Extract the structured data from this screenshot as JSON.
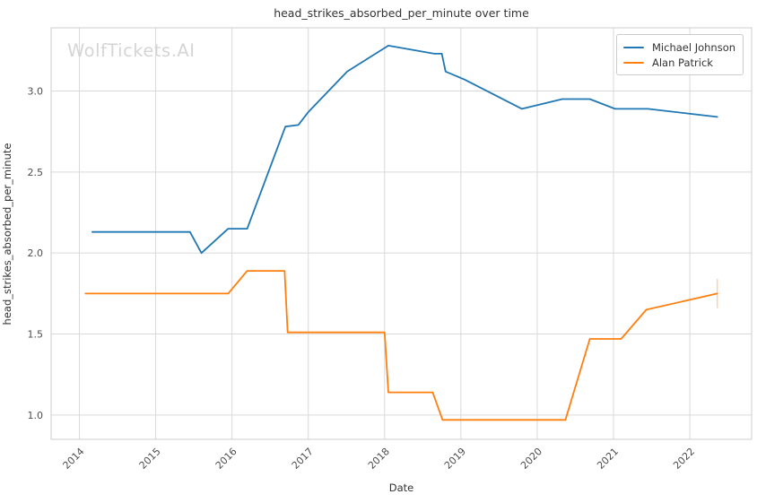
{
  "figure": {
    "title": "head_strikes_absorbed_per_minute over time",
    "xlabel": "Date",
    "ylabel": "head_strikes_absorbed_per_minute",
    "watermark": "WolfTickets.AI",
    "background_color": "#ffffff",
    "grid_color": "#d9d9d9",
    "border_color": "#cccccc",
    "text_color": "#333333",
    "tick_label_color": "#4d4d4d",
    "watermark_color": "#d5d5d5"
  },
  "chart_data": {
    "type": "line",
    "title": "head_strikes_absorbed_per_minute over time",
    "xlabel": "Date",
    "ylabel": "head_strikes_absorbed_per_minute",
    "grid": true,
    "legend_position": "upper right",
    "xlim": [
      2013.63,
      2022.81
    ],
    "ylim": [
      0.85,
      3.39
    ],
    "xticks": [
      2014,
      2015,
      2016,
      2017,
      2018,
      2019,
      2020,
      2021,
      2022
    ],
    "xtick_labels": [
      "2014",
      "2015",
      "2016",
      "2017",
      "2018",
      "2019",
      "2020",
      "2021",
      "2022"
    ],
    "yticks": [
      1.0,
      1.5,
      2.0,
      2.5,
      3.0
    ],
    "ytick_labels": [
      "1.0",
      "1.5",
      "2.0",
      "2.5",
      "3.0"
    ],
    "series": [
      {
        "name": "Michael Johnson",
        "color": "#1f77b4",
        "points": [
          [
            2014.17,
            2.13
          ],
          [
            2015.45,
            2.13
          ],
          [
            2015.6,
            2.0
          ],
          [
            2015.95,
            2.15
          ],
          [
            2016.2,
            2.15
          ],
          [
            2016.7,
            2.78
          ],
          [
            2016.87,
            2.79
          ],
          [
            2017.0,
            2.87
          ],
          [
            2017.51,
            3.12
          ],
          [
            2018.05,
            3.28
          ],
          [
            2018.65,
            3.23
          ],
          [
            2018.75,
            3.23
          ],
          [
            2018.8,
            3.12
          ],
          [
            2019.05,
            3.07
          ],
          [
            2019.8,
            2.89
          ],
          [
            2020.33,
            2.95
          ],
          [
            2020.69,
            2.95
          ],
          [
            2021.02,
            2.89
          ],
          [
            2021.45,
            2.89
          ],
          [
            2022.36,
            2.84
          ]
        ]
      },
      {
        "name": "Alan Patrick",
        "color": "#ff7f0e",
        "points": [
          [
            2014.08,
            1.75
          ],
          [
            2015.95,
            1.75
          ],
          [
            2016.2,
            1.89
          ],
          [
            2016.69,
            1.89
          ],
          [
            2016.73,
            1.51
          ],
          [
            2018.0,
            1.51
          ],
          [
            2018.05,
            1.14
          ],
          [
            2018.63,
            1.14
          ],
          [
            2018.76,
            0.97
          ],
          [
            2020.37,
            0.97
          ],
          [
            2020.69,
            1.47
          ],
          [
            2021.1,
            1.47
          ],
          [
            2021.43,
            1.65
          ],
          [
            2022.36,
            1.75
          ]
        ],
        "end_tick": {
          "x": 2022.36,
          "y1": 1.66,
          "y2": 1.84,
          "opacity": 0.4
        }
      }
    ]
  }
}
